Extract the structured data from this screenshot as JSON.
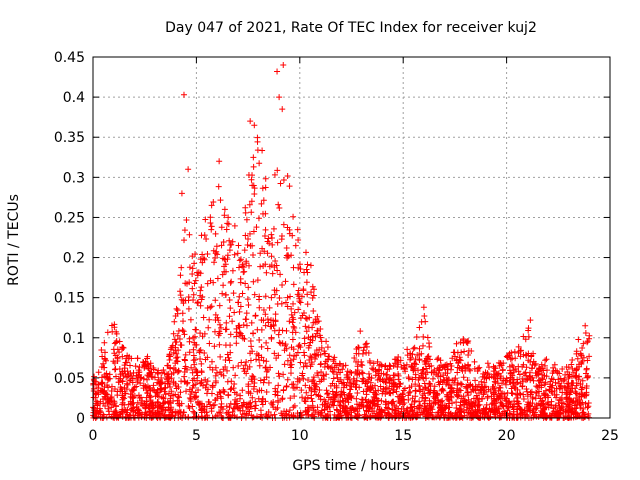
{
  "chart_data": {
    "type": "scatter",
    "title": "Day 047 of 2021, Rate Of TEC Index for receiver kuj2",
    "xlabel": "GPS time / hours",
    "ylabel": "ROTI / TECUs",
    "xlim": [
      0,
      25
    ],
    "ylim": [
      0,
      0.45
    ],
    "x_ticks": [
      0,
      5,
      10,
      15,
      20,
      25
    ],
    "y_ticks": [
      0,
      0.05,
      0.1,
      0.15,
      0.2,
      0.25,
      0.3,
      0.35,
      0.4,
      0.45
    ],
    "y_tick_labels": [
      "0",
      "0.05",
      "0.1",
      "0.15",
      "0.2",
      "0.25",
      "0.3",
      "0.35",
      "0.4",
      "0.45"
    ],
    "grid": true,
    "marker": "+",
    "marker_color": "#ff0000",
    "series": [
      {
        "name": "ROTI",
        "envelope_x": [
          0,
          0.5,
          1,
          1.5,
          2,
          2.5,
          3,
          3.5,
          4,
          4.5,
          5,
          5.5,
          6,
          6.5,
          7,
          7.5,
          8,
          8.5,
          9,
          9.5,
          10,
          10.5,
          11,
          11.5,
          12,
          12.5,
          13,
          13.5,
          14,
          14.5,
          15,
          15.5,
          16,
          16.5,
          17,
          17.5,
          18,
          18.5,
          19,
          19.5,
          20,
          20.5,
          21,
          21.5,
          22,
          22.5,
          23,
          23.5,
          24
        ],
        "envelope_y": [
          0.05,
          0.1,
          0.12,
          0.09,
          0.07,
          0.09,
          0.06,
          0.06,
          0.13,
          0.25,
          0.2,
          0.26,
          0.3,
          0.25,
          0.26,
          0.3,
          0.37,
          0.28,
          0.33,
          0.3,
          0.22,
          0.2,
          0.12,
          0.08,
          0.07,
          0.06,
          0.12,
          0.07,
          0.07,
          0.07,
          0.09,
          0.09,
          0.13,
          0.08,
          0.07,
          0.09,
          0.11,
          0.07,
          0.07,
          0.07,
          0.08,
          0.09,
          0.12,
          0.06,
          0.08,
          0.06,
          0.07,
          0.1,
          0.11
        ],
        "outliers": [
          {
            "x": 4.4,
            "y": 0.403
          },
          {
            "x": 8.9,
            "y": 0.432
          },
          {
            "x": 9.2,
            "y": 0.44
          },
          {
            "x": 9.0,
            "y": 0.4
          },
          {
            "x": 9.15,
            "y": 0.385
          },
          {
            "x": 7.6,
            "y": 0.37
          },
          {
            "x": 7.8,
            "y": 0.365
          },
          {
            "x": 6.1,
            "y": 0.32
          },
          {
            "x": 4.6,
            "y": 0.31
          },
          {
            "x": 4.3,
            "y": 0.28
          },
          {
            "x": 16.0,
            "y": 0.138
          },
          {
            "x": 21.15,
            "y": 0.122
          },
          {
            "x": 23.8,
            "y": 0.115
          }
        ]
      }
    ]
  }
}
